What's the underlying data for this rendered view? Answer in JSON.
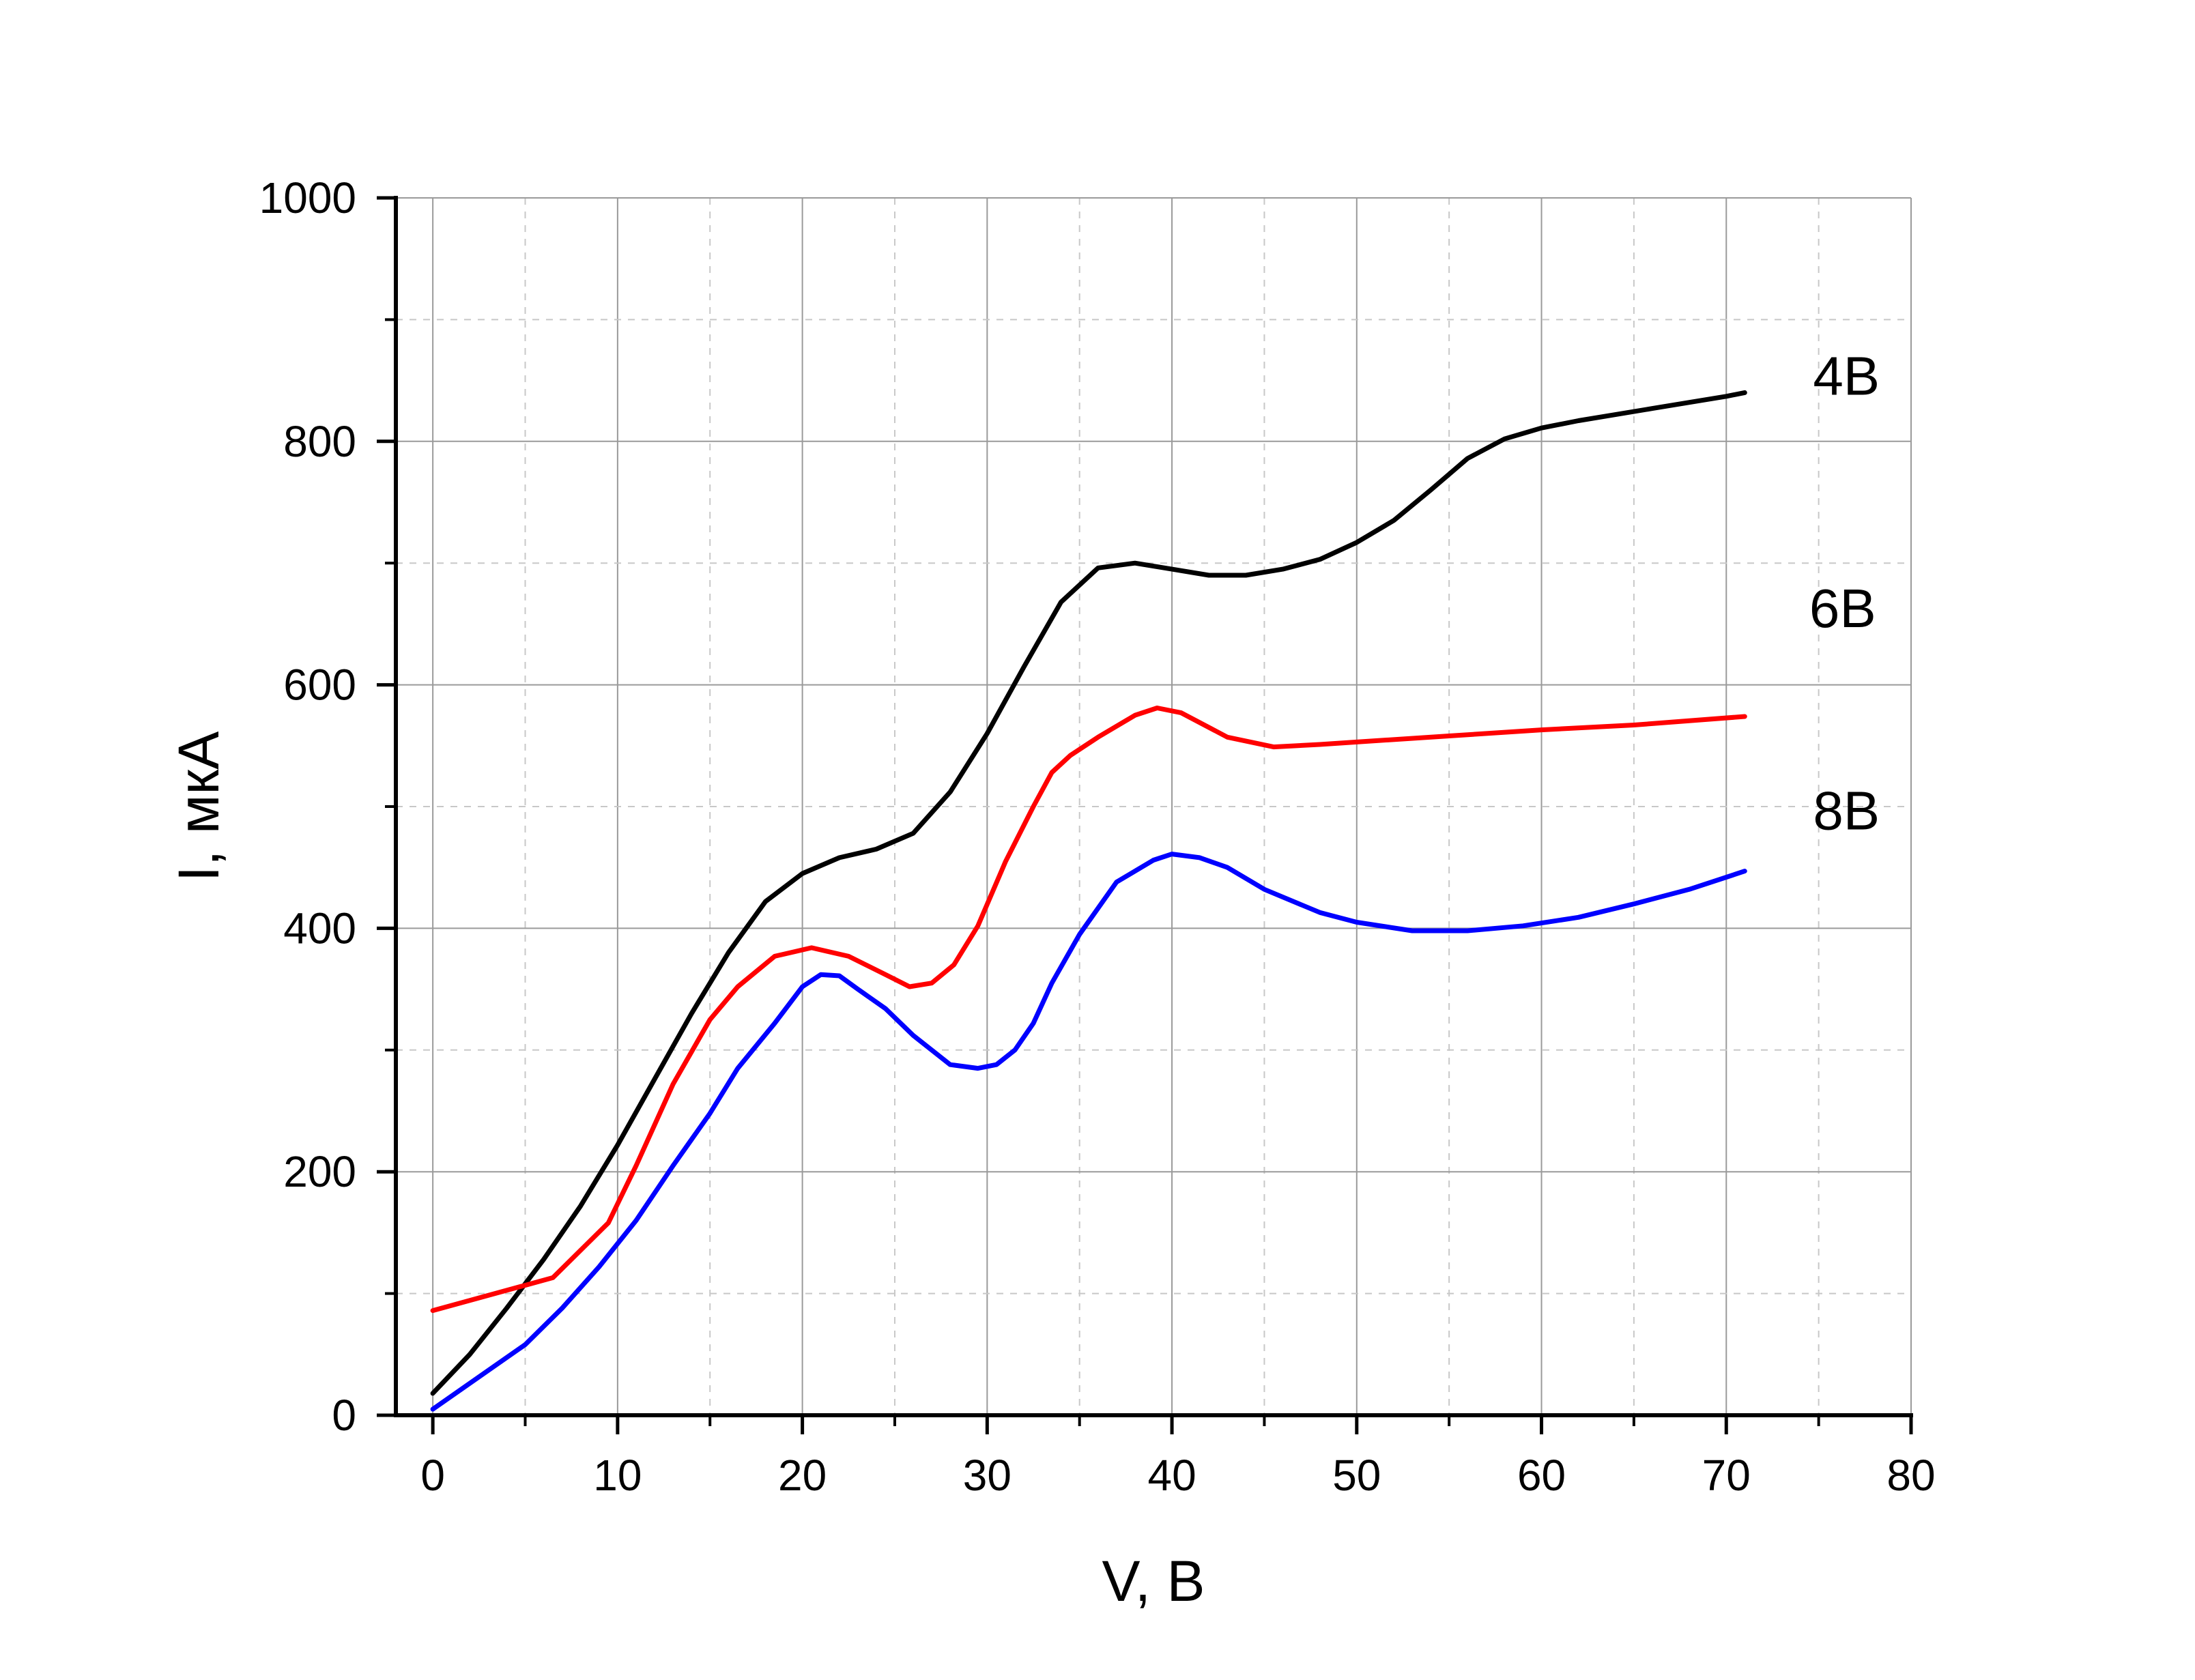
{
  "chart_data": {
    "type": "line",
    "title": "",
    "xlabel": "V, В",
    "ylabel": "I, мкА",
    "xlim": [
      -2,
      80
    ],
    "ylim": [
      0,
      1000
    ],
    "x_ticks": [
      0,
      10,
      20,
      30,
      40,
      50,
      60,
      70,
      80
    ],
    "y_ticks": [
      0,
      200,
      400,
      600,
      800,
      1000
    ],
    "x_tick_labels": [
      "0",
      "10",
      "20",
      "30",
      "40",
      "50",
      "60",
      "70",
      "80"
    ],
    "y_tick_labels": [
      "0",
      "200",
      "400",
      "600",
      "800",
      "1000"
    ],
    "grid": true,
    "colors": {
      "axis": "#000000",
      "grid_major": "#9a9a9a",
      "grid_minor": "#c8c8c8"
    },
    "series": [
      {
        "name": "4В",
        "color": "#000000",
        "points": [
          [
            0,
            18
          ],
          [
            2,
            50
          ],
          [
            4,
            88
          ],
          [
            6,
            128
          ],
          [
            8,
            172
          ],
          [
            10,
            222
          ],
          [
            12,
            276
          ],
          [
            14,
            330
          ],
          [
            16,
            380
          ],
          [
            18,
            422
          ],
          [
            20,
            445
          ],
          [
            22,
            458
          ],
          [
            24,
            465
          ],
          [
            26,
            478
          ],
          [
            28,
            512
          ],
          [
            30,
            560
          ],
          [
            32,
            615
          ],
          [
            34,
            668
          ],
          [
            36,
            696
          ],
          [
            38,
            700
          ],
          [
            40,
            695
          ],
          [
            42,
            690
          ],
          [
            44,
            690
          ],
          [
            46,
            695
          ],
          [
            48,
            703
          ],
          [
            50,
            717
          ],
          [
            52,
            735
          ],
          [
            54,
            760
          ],
          [
            56,
            786
          ],
          [
            58,
            802
          ],
          [
            60,
            811
          ],
          [
            62,
            817
          ],
          [
            64,
            822
          ],
          [
            66,
            827
          ],
          [
            68,
            832
          ],
          [
            70,
            837
          ],
          [
            71,
            840
          ]
        ]
      },
      {
        "name": "6В",
        "color": "#ff0000",
        "points": [
          [
            0,
            86
          ],
          [
            6.5,
            113
          ],
          [
            9.5,
            158
          ],
          [
            11,
            205
          ],
          [
            13,
            272
          ],
          [
            15,
            325
          ],
          [
            16.5,
            352
          ],
          [
            18.5,
            377
          ],
          [
            20.5,
            384
          ],
          [
            22.5,
            377
          ],
          [
            24.5,
            362
          ],
          [
            25.8,
            352
          ],
          [
            27,
            355
          ],
          [
            28.2,
            370
          ],
          [
            29.5,
            402
          ],
          [
            31,
            455
          ],
          [
            32.5,
            500
          ],
          [
            33.5,
            528
          ],
          [
            34.5,
            542
          ],
          [
            36,
            557
          ],
          [
            38,
            575
          ],
          [
            39.2,
            581
          ],
          [
            40.5,
            577
          ],
          [
            43,
            557
          ],
          [
            45.5,
            549
          ],
          [
            48,
            551
          ],
          [
            50,
            553
          ],
          [
            55,
            558
          ],
          [
            60,
            563
          ],
          [
            65,
            567
          ],
          [
            71,
            574
          ]
        ]
      },
      {
        "name": "8В",
        "color": "#0000ff",
        "points": [
          [
            0,
            5
          ],
          [
            5,
            58
          ],
          [
            7,
            88
          ],
          [
            9,
            122
          ],
          [
            11,
            160
          ],
          [
            13,
            205
          ],
          [
            15,
            248
          ],
          [
            16.5,
            285
          ],
          [
            18.5,
            322
          ],
          [
            20,
            352
          ],
          [
            21,
            362
          ],
          [
            22,
            361
          ],
          [
            23,
            350
          ],
          [
            24.5,
            334
          ],
          [
            26,
            312
          ],
          [
            28,
            288
          ],
          [
            29.5,
            285
          ],
          [
            30.5,
            288
          ],
          [
            31.5,
            300
          ],
          [
            32.5,
            322
          ],
          [
            33.5,
            355
          ],
          [
            35,
            395
          ],
          [
            37,
            438
          ],
          [
            39,
            456
          ],
          [
            40,
            461
          ],
          [
            41.5,
            458
          ],
          [
            43,
            450
          ],
          [
            45,
            432
          ],
          [
            48,
            413
          ],
          [
            50,
            405
          ],
          [
            53,
            398
          ],
          [
            56,
            398
          ],
          [
            59,
            402
          ],
          [
            62,
            409
          ],
          [
            65,
            420
          ],
          [
            68,
            432
          ],
          [
            71,
            447
          ]
        ]
      }
    ],
    "annotations": [
      {
        "text": "4В",
        "x": 76.5,
        "y": 854
      },
      {
        "text": "6В",
        "x": 76.3,
        "y": 663
      },
      {
        "text": "8В",
        "x": 76.5,
        "y": 497
      }
    ]
  }
}
